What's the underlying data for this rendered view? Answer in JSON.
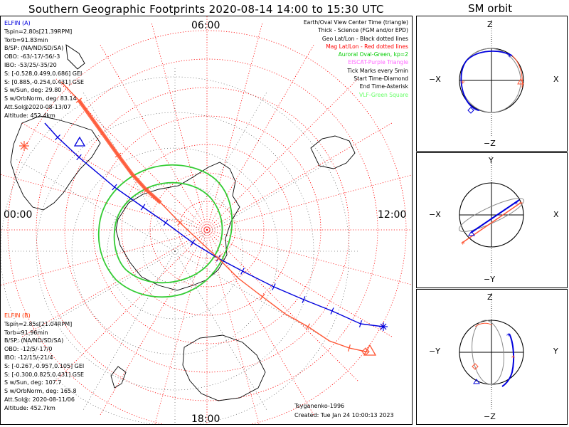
{
  "header": {
    "title": "Southern Geographic Footprints 2020-08-14 14:00 to 15:30 UTC",
    "orbit_title": "SM orbit"
  },
  "map": {
    "hour_labels": {
      "top": "06:00",
      "left": "00:00",
      "right": "12:00",
      "bottom": "18:00"
    },
    "legend": [
      {
        "text": "Earth/Oval View Center Time (triangle)",
        "color": "#000000"
      },
      {
        "text": "Thick - Science (FGM and/or EPD)",
        "color": "#000000"
      },
      {
        "text": "Geo Lat/Lon - Black dotted lines",
        "color": "#000000"
      },
      {
        "text": "Mag Lat/Lon - Red dotted lines",
        "color": "#ff0000"
      },
      {
        "text": "Auroral Oval-Green, kp=2",
        "color": "#00cc00"
      },
      {
        "text": "EISCAT-Purple Triangle",
        "color": "#ff66ff"
      },
      {
        "text": "Tick Marks every 5min",
        "color": "#000000"
      },
      {
        "text": "Start Time-Diamond",
        "color": "#000000"
      },
      {
        "text": "End Time-Asterisk",
        "color": "#000000"
      },
      {
        "text": "VLF-Green Square",
        "color": "#66ff66"
      }
    ],
    "elfin_a": {
      "color": "#0000dd",
      "lines": [
        "ELFIN (A)",
        "Tspin=2.80s[21.39RPM]",
        "Torb=91.83min",
        "B/SP: (NA/ND/SD/SA)",
        "OBO: -63/-17/-56/-3",
        "IBO: -53/25/-35/20",
        "S: [-0.528,0.499,0.686] GEI",
        "S: [0.885,-0.254,0.431] GSE",
        "S w/Sun, deg: 29.80",
        "S w/OrbNorm, deg: 83.14",
        "Att.Sol@2020-08-13/07",
        "Altitude: 452.4km"
      ]
    },
    "elfin_b": {
      "color": "#ff3300",
      "lines": [
        "ELFIN (B)",
        "Tspin=2.85s[21.04RPM]",
        "Torb=91.96min",
        "B/SP: (NA/ND/SD/SA)",
        "OBO: -12/5/-17/0",
        "IBO: -12/15/-21/4",
        "S: [-0.267,-0.957,0.105] GEI",
        "S: [-0.300,0.825,0.431] GSE",
        "S w/Sun, deg: 107.7",
        "S w/OrbNorm, deg: 165.8",
        "Att.Sol@: 2020-08-11/06",
        "Altitude: 452.7km"
      ]
    },
    "model": "Tsyganenko-1996",
    "created": "Created: Tue Jan 24 10:00:13 2023",
    "colors": {
      "trace_a": "#0000dd",
      "trace_b": "#ff5533",
      "oval": "#33cc33",
      "mag_grid": "#ff0000",
      "geo_grid": "#000000"
    }
  },
  "orbits": {
    "xz": {
      "top": "Z",
      "bottom": "−Z",
      "left": "−X",
      "right": "X"
    },
    "xy": {
      "top": "Y",
      "bottom": "−Y",
      "left": "−X",
      "right": "X"
    },
    "yz": {
      "top": "Z",
      "bottom": "−Z",
      "left": "−Y",
      "right": "Y"
    }
  }
}
